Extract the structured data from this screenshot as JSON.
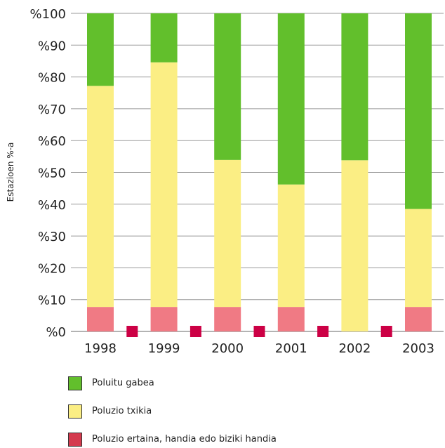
{
  "chart_data": {
    "type": "bar",
    "stacked": true,
    "ylabel": "Estazioen %-a",
    "xlabel": "",
    "ylim": [
      0,
      100
    ],
    "y_ticks": [
      "%0",
      "%10",
      "%20",
      "%30",
      "%40",
      "%50",
      "%60",
      "%70",
      "%80",
      "%90",
      "%100"
    ],
    "y_tick_values": [
      0,
      10,
      20,
      30,
      40,
      50,
      60,
      70,
      80,
      90,
      100
    ],
    "categories": [
      "1998",
      "1999",
      "2000",
      "2001",
      "2002",
      "2003"
    ],
    "series": [
      {
        "name": "Poluzio ertaina, handia edo biziki handia",
        "color": "#f07a84",
        "values": [
          7.7,
          7.7,
          7.7,
          7.7,
          0,
          7.7
        ]
      },
      {
        "name": "Poluzio txikia",
        "color": "#fbee84",
        "values": [
          69.5,
          76.9,
          46.2,
          38.5,
          53.8,
          30.8
        ]
      },
      {
        "name": "Poluitu gabea",
        "color": "#62bf2c",
        "values": [
          22.8,
          15.4,
          46.1,
          53.8,
          46.2,
          61.5
        ]
      }
    ],
    "gap_markers_color": "#cc0045",
    "legend_position": "bottom",
    "grid": true
  }
}
